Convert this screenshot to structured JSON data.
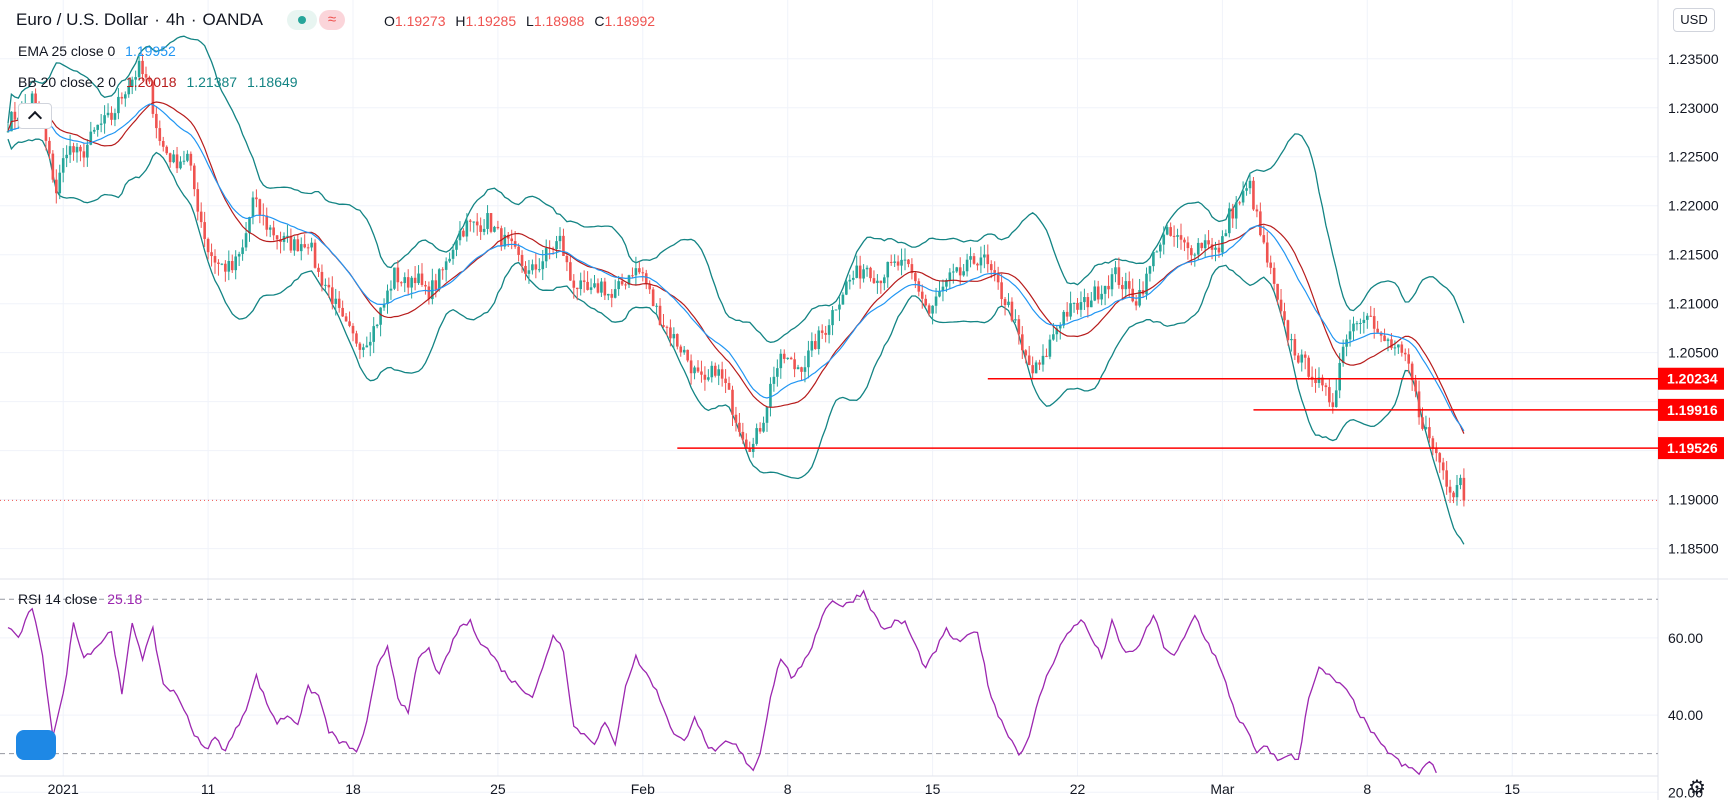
{
  "header": {
    "symbol": "Euro / U.S. Dollar",
    "interval": "4h",
    "exchange": "OANDA",
    "ohlc": {
      "o_label": "O",
      "o": "1.19273",
      "h_label": "H",
      "h": "1.19285",
      "l_label": "L",
      "l": "1.18988",
      "c_label": "C",
      "c": "1.18992"
    }
  },
  "indicators": {
    "ema": {
      "label": "EMA 25 close 0",
      "value": "1.19952",
      "color": "#2196f3"
    },
    "bb": {
      "label": "BB 20 close 2 0",
      "basis": "1.20018",
      "upper": "1.21387",
      "lower": "1.18649",
      "basis_color": "#b71c1c",
      "band_color": "#138484"
    },
    "rsi": {
      "label": "RSI 14 close",
      "value": "25.18",
      "color": "#9c27b0"
    }
  },
  "currency_button": "USD",
  "colors": {
    "up": "#26a69a",
    "down": "#ef5350",
    "hline": "#ff0000",
    "grid": "#f0f3fa",
    "rsi": "#9c27b0",
    "ema": "#2196f3",
    "bb_basis": "#b71c1c",
    "bb_band": "#138484"
  },
  "chart_data": {
    "type": "candlestick",
    "title": "Euro / U.S. Dollar, 4h, OANDA",
    "y_range": [
      1.182,
      1.241
    ],
    "y_ticks": [
      1.185,
      1.19,
      1.195,
      1.2,
      1.205,
      1.21,
      1.215,
      1.22,
      1.225,
      1.23,
      1.235
    ],
    "y_tick_labels": [
      "1.18500",
      "1.19000",
      "1.19500",
      "1.20000",
      "1.20500",
      "1.21000",
      "1.21500",
      "1.22000",
      "1.22500",
      "1.23000",
      "1.23500"
    ],
    "x_labels": [
      {
        "label": "2021",
        "bar": 16
      },
      {
        "label": "11",
        "bar": 58
      },
      {
        "label": "18",
        "bar": 100
      },
      {
        "label": "25",
        "bar": 142
      },
      {
        "label": "Feb",
        "bar": 184
      },
      {
        "label": "8",
        "bar": 226
      },
      {
        "label": "15",
        "bar": 268
      },
      {
        "label": "22",
        "bar": 310
      },
      {
        "label": "Mar",
        "bar": 352
      },
      {
        "label": "8",
        "bar": 394
      },
      {
        "label": "15",
        "bar": 436
      }
    ],
    "total_bars": 440,
    "last_price": 1.18992,
    "price_anchors": [
      [
        0,
        1.2285
      ],
      [
        3,
        1.2295
      ],
      [
        7,
        1.231
      ],
      [
        10,
        1.228
      ],
      [
        14,
        1.2215
      ],
      [
        17,
        1.226
      ],
      [
        21,
        1.225
      ],
      [
        26,
        1.228
      ],
      [
        30,
        1.229
      ],
      [
        34,
        1.232
      ],
      [
        38,
        1.234
      ],
      [
        41,
        1.232
      ],
      [
        44,
        1.2265
      ],
      [
        48,
        1.2245
      ],
      [
        52,
        1.225
      ],
      [
        55,
        1.22
      ],
      [
        58,
        1.2155
      ],
      [
        61,
        1.214
      ],
      [
        65,
        1.2135
      ],
      [
        68,
        1.2155
      ],
      [
        71,
        1.2205
      ],
      [
        75,
        1.218
      ],
      [
        79,
        1.2165
      ],
      [
        83,
        1.216
      ],
      [
        87,
        1.2165
      ],
      [
        90,
        1.213
      ],
      [
        93,
        1.2115
      ],
      [
        97,
        1.208
      ],
      [
        100,
        1.2065
      ],
      [
        103,
        1.206
      ],
      [
        106,
        1.2075
      ],
      [
        109,
        1.21
      ],
      [
        112,
        1.213
      ],
      [
        115,
        1.212
      ],
      [
        118,
        1.213
      ],
      [
        121,
        1.211
      ],
      [
        124,
        1.212
      ],
      [
        127,
        1.214
      ],
      [
        130,
        1.217
      ],
      [
        133,
        1.218
      ],
      [
        136,
        1.218
      ],
      [
        139,
        1.2185
      ],
      [
        142,
        1.217
      ],
      [
        145,
        1.216
      ],
      [
        148,
        1.2145
      ],
      [
        151,
        1.213
      ],
      [
        154,
        1.214
      ],
      [
        157,
        1.2155
      ],
      [
        160,
        1.2165
      ],
      [
        163,
        1.2125
      ],
      [
        166,
        1.2115
      ],
      [
        169,
        1.211
      ],
      [
        172,
        1.212
      ],
      [
        175,
        1.2105
      ],
      [
        178,
        1.212
      ],
      [
        181,
        1.2135
      ],
      [
        184,
        1.213
      ],
      [
        187,
        1.21
      ],
      [
        190,
        1.208
      ],
      [
        193,
        1.2065
      ],
      [
        196,
        1.205
      ],
      [
        199,
        1.203
      ],
      [
        202,
        1.2015
      ],
      [
        205,
        1.2035
      ],
      [
        208,
        1.2015
      ],
      [
        211,
        1.1985
      ],
      [
        214,
        1.196
      ],
      [
        216,
        1.1955
      ],
      [
        219,
        1.1985
      ],
      [
        222,
        1.203
      ],
      [
        225,
        1.2045
      ],
      [
        228,
        1.2035
      ],
      [
        231,
        1.204
      ],
      [
        234,
        1.206
      ],
      [
        237,
        1.2075
      ],
      [
        240,
        1.21
      ],
      [
        243,
        1.212
      ],
      [
        246,
        1.213
      ],
      [
        249,
        1.214
      ],
      [
        252,
        1.2125
      ],
      [
        255,
        1.2135
      ],
      [
        258,
        1.214
      ],
      [
        261,
        1.2135
      ],
      [
        264,
        1.2115
      ],
      [
        267,
        1.209
      ],
      [
        270,
        1.211
      ],
      [
        273,
        1.2125
      ],
      [
        276,
        1.213
      ],
      [
        279,
        1.214
      ],
      [
        282,
        1.215
      ],
      [
        285,
        1.213
      ],
      [
        288,
        1.211
      ],
      [
        291,
        1.209
      ],
      [
        294,
        1.205
      ],
      [
        297,
        1.203
      ],
      [
        300,
        1.204
      ],
      [
        303,
        1.207
      ],
      [
        306,
        1.209
      ],
      [
        309,
        1.2095
      ],
      [
        312,
        1.21
      ],
      [
        315,
        1.211
      ],
      [
        318,
        1.212
      ],
      [
        321,
        1.213
      ],
      [
        324,
        1.2115
      ],
      [
        327,
        1.2105
      ],
      [
        330,
        1.2125
      ],
      [
        333,
        1.216
      ],
      [
        336,
        1.217
      ],
      [
        339,
        1.2165
      ],
      [
        342,
        1.2155
      ],
      [
        345,
        1.216
      ],
      [
        348,
        1.2165
      ],
      [
        351,
        1.215
      ],
      [
        354,
        1.219
      ],
      [
        357,
        1.2205
      ],
      [
        360,
        1.222
      ],
      [
        363,
        1.217
      ],
      [
        366,
        1.213
      ],
      [
        369,
        1.2085
      ],
      [
        372,
        1.206
      ],
      [
        375,
        1.204
      ],
      [
        378,
        1.203
      ],
      [
        381,
        1.201
      ],
      [
        384,
        1.2
      ],
      [
        386,
        1.204
      ],
      [
        388,
        1.207
      ],
      [
        391,
        1.2085
      ],
      [
        394,
        1.2095
      ],
      [
        397,
        1.2065
      ],
      [
        400,
        1.206
      ],
      [
        403,
        1.205
      ],
      [
        406,
        1.2035
      ],
      [
        409,
        1.199
      ],
      [
        412,
        1.196
      ],
      [
        415,
        1.194
      ],
      [
        417,
        1.192
      ],
      [
        419,
        1.191
      ],
      [
        421,
        1.1925
      ],
      [
        422,
        1.1899
      ]
    ],
    "hlines": [
      {
        "price": 1.20234,
        "label": "1.20234",
        "start_bar": 284
      },
      {
        "price": 1.19916,
        "label": "1.19916",
        "start_bar": 361
      },
      {
        "price": 1.19526,
        "label": "1.19526",
        "start_bar": 194
      }
    ],
    "rsi": {
      "y_range": [
        18,
        75
      ],
      "y_ticks": [
        20,
        40,
        60
      ],
      "y_tick_labels": [
        "20.00",
        "40.00",
        "60.00"
      ],
      "levels": [
        30,
        70
      ],
      "anchors": [
        [
          0,
          63
        ],
        [
          3,
          60
        ],
        [
          7,
          68
        ],
        [
          10,
          55
        ],
        [
          13,
          35
        ],
        [
          16,
          45
        ],
        [
          19,
          64
        ],
        [
          22,
          55
        ],
        [
          26,
          58
        ],
        [
          30,
          62
        ],
        [
          33,
          45
        ],
        [
          36,
          64
        ],
        [
          39,
          55
        ],
        [
          42,
          62
        ],
        [
          45,
          48
        ],
        [
          48,
          46
        ],
        [
          51,
          42
        ],
        [
          54,
          35
        ],
        [
          57,
          31
        ],
        [
          60,
          34
        ],
        [
          63,
          31
        ],
        [
          66,
          36
        ],
        [
          69,
          42
        ],
        [
          72,
          50
        ],
        [
          75,
          43
        ],
        [
          78,
          38
        ],
        [
          81,
          40
        ],
        [
          84,
          38
        ],
        [
          87,
          47
        ],
        [
          90,
          45
        ],
        [
          93,
          36
        ],
        [
          96,
          33
        ],
        [
          99,
          32
        ],
        [
          101,
          30
        ],
        [
          104,
          38
        ],
        [
          107,
          52
        ],
        [
          110,
          58
        ],
        [
          113,
          45
        ],
        [
          116,
          40
        ],
        [
          119,
          55
        ],
        [
          122,
          57
        ],
        [
          125,
          50
        ],
        [
          128,
          57
        ],
        [
          131,
          63
        ],
        [
          134,
          64
        ],
        [
          137,
          59
        ],
        [
          140,
          56
        ],
        [
          143,
          52
        ],
        [
          146,
          49
        ],
        [
          149,
          47
        ],
        [
          152,
          45
        ],
        [
          155,
          52
        ],
        [
          158,
          61
        ],
        [
          161,
          57
        ],
        [
          164,
          37
        ],
        [
          167,
          35
        ],
        [
          170,
          33
        ],
        [
          173,
          38
        ],
        [
          176,
          32
        ],
        [
          179,
          48
        ],
        [
          182,
          55
        ],
        [
          184,
          52
        ],
        [
          187,
          48
        ],
        [
          190,
          42
        ],
        [
          193,
          35
        ],
        [
          196,
          33
        ],
        [
          199,
          40
        ],
        [
          202,
          33
        ],
        [
          205,
          30
        ],
        [
          208,
          33
        ],
        [
          211,
          32
        ],
        [
          214,
          28
        ],
        [
          216,
          26
        ],
        [
          218,
          30
        ],
        [
          221,
          45
        ],
        [
          224,
          55
        ],
        [
          227,
          50
        ],
        [
          230,
          52
        ],
        [
          233,
          58
        ],
        [
          236,
          66
        ],
        [
          239,
          70
        ],
        [
          242,
          68
        ],
        [
          245,
          70
        ],
        [
          248,
          72
        ],
        [
          251,
          66
        ],
        [
          254,
          62
        ],
        [
          257,
          64
        ],
        [
          260,
          64
        ],
        [
          263,
          58
        ],
        [
          266,
          52
        ],
        [
          269,
          57
        ],
        [
          272,
          62
        ],
        [
          275,
          59
        ],
        [
          278,
          60
        ],
        [
          281,
          62
        ],
        [
          284,
          48
        ],
        [
          287,
          40
        ],
        [
          290,
          35
        ],
        [
          293,
          30
        ],
        [
          296,
          34
        ],
        [
          299,
          45
        ],
        [
          302,
          52
        ],
        [
          305,
          58
        ],
        [
          308,
          62
        ],
        [
          311,
          65
        ],
        [
          314,
          60
        ],
        [
          317,
          55
        ],
        [
          320,
          64
        ],
        [
          323,
          57
        ],
        [
          326,
          56
        ],
        [
          329,
          60
        ],
        [
          332,
          66
        ],
        [
          335,
          58
        ],
        [
          338,
          55
        ],
        [
          341,
          60
        ],
        [
          344,
          66
        ],
        [
          347,
          60
        ],
        [
          350,
          55
        ],
        [
          353,
          48
        ],
        [
          356,
          40
        ],
        [
          359,
          36
        ],
        [
          362,
          30
        ],
        [
          365,
          32
        ],
        [
          368,
          28
        ],
        [
          371,
          30
        ],
        [
          374,
          28
        ],
        [
          377,
          45
        ],
        [
          380,
          52
        ],
        [
          383,
          50
        ],
        [
          386,
          48
        ],
        [
          389,
          45
        ],
        [
          392,
          40
        ],
        [
          395,
          36
        ],
        [
          398,
          32
        ],
        [
          401,
          30
        ],
        [
          404,
          27
        ],
        [
          407,
          26
        ],
        [
          409,
          25
        ],
        [
          411,
          27
        ],
        [
          412,
          28
        ],
        [
          414,
          25
        ]
      ]
    },
    "ema_values_last": "1.19952",
    "bb_last": {
      "basis": "1.20018",
      "upper": "1.21387",
      "lower": "1.18649"
    }
  }
}
